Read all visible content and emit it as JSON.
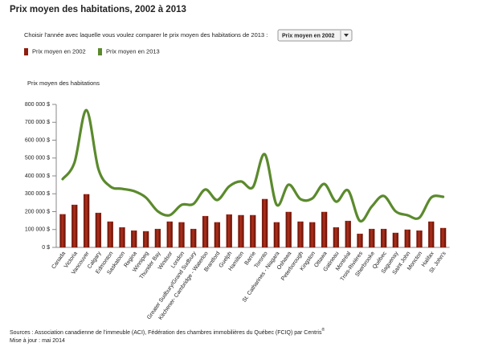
{
  "chart_data": {
    "type": "bar-line",
    "title": "Prix moyen des habitations, 2002 à 2013",
    "y_label": "Prix moyen des habitations",
    "categories": [
      "Canada",
      "Victoria",
      "Vancouver",
      "Calgary",
      "Edmonton",
      "Saskatoon",
      "Regina",
      "Winnipeg",
      "Thunder Bay",
      "Windsor",
      "London",
      "Greater Sudbury/Grand Sudbury",
      "Kitchener- Cambridge - Waterloo",
      "Brantford",
      "Guelph",
      "Hamilton",
      "Barrie",
      "Toronto",
      "St. Catharines - Niagara",
      "Oshawa",
      "Peterborough",
      "Kingston",
      "Ottawa",
      "Gatineau",
      "Montréal",
      "Trois-Rivières",
      "Sherbrooke",
      "Québec",
      "Saguenay",
      "Saint John",
      "Moncton",
      "Halifax",
      "St. John's"
    ],
    "series": [
      {
        "name": "Prix moyen en 2002",
        "type": "bar",
        "color": "#8e1d0f",
        "values": [
          185000,
          238000,
          297000,
          193000,
          144000,
          112000,
          94000,
          90000,
          103000,
          144000,
          140000,
          103000,
          175000,
          140000,
          184000,
          180000,
          180000,
          270000,
          140000,
          198000,
          144000,
          140000,
          198000,
          112000,
          148000,
          76000,
          103000,
          103000,
          81000,
          99000,
          94000,
          144000,
          108000
        ]
      },
      {
        "name": "Prix moyen en 2013",
        "type": "line",
        "color": "#5b8a2d",
        "values": [
          382000,
          476000,
          768000,
          440000,
          341000,
          328000,
          315000,
          279000,
          202000,
          180000,
          238000,
          243000,
          324000,
          265000,
          341000,
          369000,
          337000,
          521000,
          238000,
          351000,
          270000,
          274000,
          355000,
          256000,
          319000,
          148000,
          229000,
          288000,
          202000,
          180000,
          166000,
          279000,
          283000
        ]
      }
    ],
    "ylim": [
      0,
      800000
    ],
    "yticks": [
      {
        "value": 0,
        "label": "0 $"
      },
      {
        "value": 100000,
        "label": "100 000 $"
      },
      {
        "value": 200000,
        "label": "200 000 $"
      },
      {
        "value": 300000,
        "label": "300 000 $"
      },
      {
        "value": 400000,
        "label": "400 000 $"
      },
      {
        "value": 500000,
        "label": "500 000 $"
      },
      {
        "value": 600000,
        "label": "600 000 $"
      },
      {
        "value": 700000,
        "label": "700 000 $"
      },
      {
        "value": 800000,
        "label": "800 000 $"
      }
    ],
    "grid": false
  },
  "controls": {
    "prompt": "Choisir l'année avec laquelle vous voulez comparer le prix moyen des habitations de 2013 :",
    "dropdown": "Prix moyen en 2002"
  },
  "footer": {
    "sources": "Sources : Association canadienne de l'immeuble (ACI), Fédération des chambres immobilières du Québec (FCIQ) par Centris",
    "sources_mark": "®",
    "updated": "Mise à jour : mai 2014"
  }
}
